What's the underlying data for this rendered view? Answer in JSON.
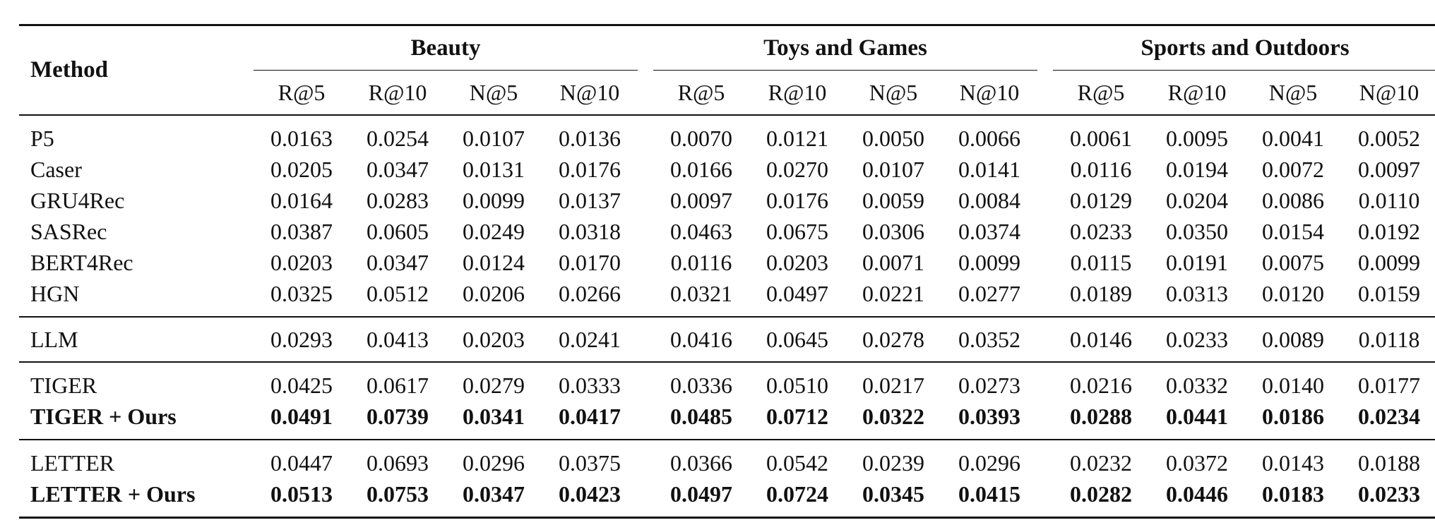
{
  "header": {
    "method_label": "Method",
    "groups": [
      "Beauty",
      "Toys and Games",
      "Sports and Outdoors"
    ],
    "metrics": [
      "R@5",
      "R@10",
      "N@5",
      "N@10"
    ]
  },
  "sections": [
    {
      "rows": [
        {
          "method": "P5",
          "bold": false,
          "values": [
            "0.0163",
            "0.0254",
            "0.0107",
            "0.0136",
            "0.0070",
            "0.0121",
            "0.0050",
            "0.0066",
            "0.0061",
            "0.0095",
            "0.0041",
            "0.0052"
          ]
        },
        {
          "method": "Caser",
          "bold": false,
          "values": [
            "0.0205",
            "0.0347",
            "0.0131",
            "0.0176",
            "0.0166",
            "0.0270",
            "0.0107",
            "0.0141",
            "0.0116",
            "0.0194",
            "0.0072",
            "0.0097"
          ]
        },
        {
          "method": "GRU4Rec",
          "bold": false,
          "values": [
            "0.0164",
            "0.0283",
            "0.0099",
            "0.0137",
            "0.0097",
            "0.0176",
            "0.0059",
            "0.0084",
            "0.0129",
            "0.0204",
            "0.0086",
            "0.0110"
          ]
        },
        {
          "method": "SASRec",
          "bold": false,
          "values": [
            "0.0387",
            "0.0605",
            "0.0249",
            "0.0318",
            "0.0463",
            "0.0675",
            "0.0306",
            "0.0374",
            "0.0233",
            "0.0350",
            "0.0154",
            "0.0192"
          ]
        },
        {
          "method": "BERT4Rec",
          "bold": false,
          "values": [
            "0.0203",
            "0.0347",
            "0.0124",
            "0.0170",
            "0.0116",
            "0.0203",
            "0.0071",
            "0.0099",
            "0.0115",
            "0.0191",
            "0.0075",
            "0.0099"
          ]
        },
        {
          "method": "HGN",
          "bold": false,
          "values": [
            "0.0325",
            "0.0512",
            "0.0206",
            "0.0266",
            "0.0321",
            "0.0497",
            "0.0221",
            "0.0277",
            "0.0189",
            "0.0313",
            "0.0120",
            "0.0159"
          ]
        }
      ]
    },
    {
      "rows": [
        {
          "method": "LLM",
          "bold": false,
          "values": [
            "0.0293",
            "0.0413",
            "0.0203",
            "0.0241",
            "0.0416",
            "0.0645",
            "0.0278",
            "0.0352",
            "0.0146",
            "0.0233",
            "0.0089",
            "0.0118"
          ]
        }
      ]
    },
    {
      "rows": [
        {
          "method": "TIGER",
          "bold": false,
          "values": [
            "0.0425",
            "0.0617",
            "0.0279",
            "0.0333",
            "0.0336",
            "0.0510",
            "0.0217",
            "0.0273",
            "0.0216",
            "0.0332",
            "0.0140",
            "0.0177"
          ]
        },
        {
          "method": "TIGER + Ours",
          "bold": true,
          "values": [
            "0.0491",
            "0.0739",
            "0.0341",
            "0.0417",
            "0.0485",
            "0.0712",
            "0.0322",
            "0.0393",
            "0.0288",
            "0.0441",
            "0.0186",
            "0.0234"
          ]
        }
      ]
    },
    {
      "rows": [
        {
          "method": "LETTER",
          "bold": false,
          "values": [
            "0.0447",
            "0.0693",
            "0.0296",
            "0.0375",
            "0.0366",
            "0.0542",
            "0.0239",
            "0.0296",
            "0.0232",
            "0.0372",
            "0.0143",
            "0.0188"
          ]
        },
        {
          "method": "LETTER + Ours",
          "bold": true,
          "values": [
            "0.0513",
            "0.0753",
            "0.0347",
            "0.0423",
            "0.0497",
            "0.0724",
            "0.0345",
            "0.0415",
            "0.0282",
            "0.0446",
            "0.0183",
            "0.0233"
          ]
        }
      ]
    }
  ]
}
